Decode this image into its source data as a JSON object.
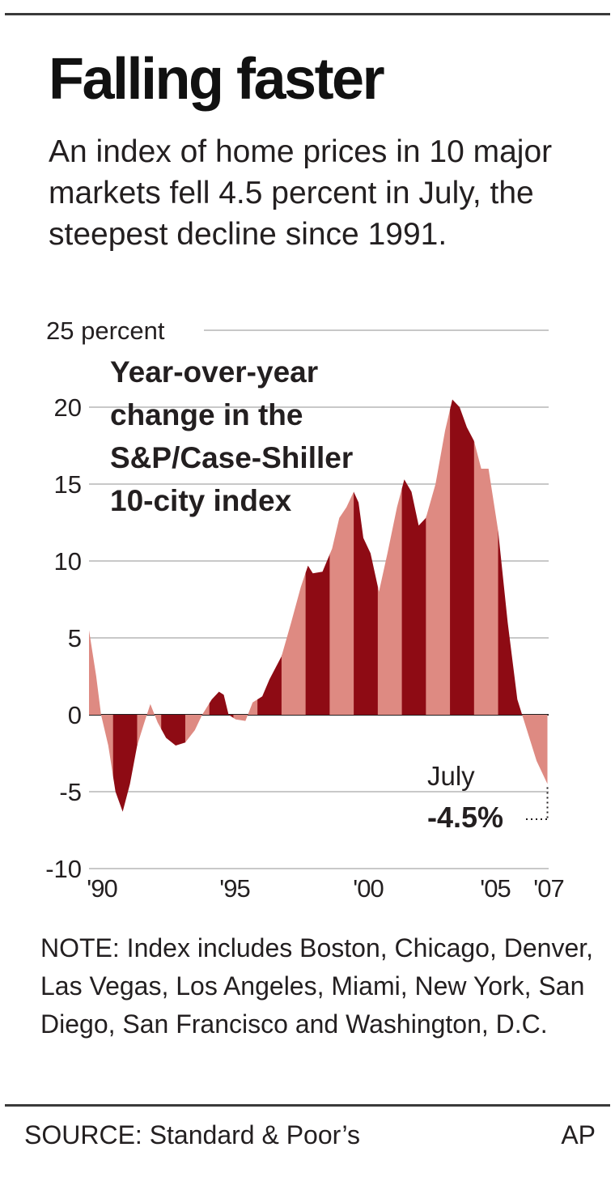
{
  "header": {
    "title": "Falling faster",
    "subtitle": "An index of home prices in 10 major markets fell 4.5 percent in July, the steepest decline since 1991."
  },
  "chart_data": {
    "type": "area",
    "title": "Year-over-year change in the S&P/Case-Shiller 10-city index",
    "title_lines": [
      "Year-over-year",
      "change in the",
      "S&P/Case-Shiller",
      "10-city index"
    ],
    "ylabel": "",
    "xlabel": "",
    "ylim": [
      -10,
      25
    ],
    "yticks": [
      25,
      20,
      15,
      10,
      5,
      0,
      -5,
      -10
    ],
    "ytick_labels": [
      "25 percent",
      "20",
      "15",
      "10",
      "5",
      "0",
      "-5",
      "-10"
    ],
    "xlim": [
      1988.5,
      2007.6
    ],
    "xticks": [
      1988.5,
      1993.5,
      1998.5,
      2003.5,
      2007.6
    ],
    "xtick_labels": [
      "'90",
      "'95",
      "'00",
      "'05",
      "'07"
    ],
    "grid": true,
    "colors": {
      "dark": "#8e0b14",
      "light": "#de8a82",
      "grid": "#c8c8c8",
      "axis": "#231f20"
    },
    "bands": [
      {
        "start": 1988.5,
        "end": 1989.5,
        "shade": "light"
      },
      {
        "start": 1989.5,
        "end": 1990.5,
        "shade": "dark"
      },
      {
        "start": 1990.5,
        "end": 1991.5,
        "shade": "light"
      },
      {
        "start": 1991.5,
        "end": 1992.5,
        "shade": "dark"
      },
      {
        "start": 1992.5,
        "end": 1993.5,
        "shade": "light"
      },
      {
        "start": 1993.5,
        "end": 1994.5,
        "shade": "dark"
      },
      {
        "start": 1994.5,
        "end": 1995.5,
        "shade": "light"
      },
      {
        "start": 1995.5,
        "end": 1996.5,
        "shade": "dark"
      },
      {
        "start": 1996.5,
        "end": 1997.5,
        "shade": "light"
      },
      {
        "start": 1997.5,
        "end": 1998.5,
        "shade": "dark"
      },
      {
        "start": 1998.5,
        "end": 1999.5,
        "shade": "light"
      },
      {
        "start": 1999.5,
        "end": 2000.5,
        "shade": "dark"
      },
      {
        "start": 2000.5,
        "end": 2001.5,
        "shade": "light"
      },
      {
        "start": 2001.5,
        "end": 2002.5,
        "shade": "dark"
      },
      {
        "start": 2002.5,
        "end": 2003.5,
        "shade": "light"
      },
      {
        "start": 2003.5,
        "end": 2004.5,
        "shade": "dark"
      },
      {
        "start": 2004.5,
        "end": 2005.5,
        "shade": "light"
      },
      {
        "start": 2005.5,
        "end": 2006.5,
        "shade": "dark"
      },
      {
        "start": 2006.5,
        "end": 2007.6,
        "shade": "light"
      }
    ],
    "series": [
      {
        "values": [
          {
            "x": 1988.5,
            "y": 5.5
          },
          {
            "x": 1988.8,
            "y": 2.5
          },
          {
            "x": 1989.0,
            "y": 0.0
          },
          {
            "x": 1989.3,
            "y": -2.0
          },
          {
            "x": 1989.6,
            "y": -5.0
          },
          {
            "x": 1989.9,
            "y": -6.3
          },
          {
            "x": 1990.2,
            "y": -4.5
          },
          {
            "x": 1990.5,
            "y": -2.0
          },
          {
            "x": 1990.8,
            "y": -0.5
          },
          {
            "x": 1991.05,
            "y": 0.7
          },
          {
            "x": 1991.35,
            "y": -0.5
          },
          {
            "x": 1991.7,
            "y": -1.5
          },
          {
            "x": 1992.1,
            "y": -2.0
          },
          {
            "x": 1992.5,
            "y": -1.8
          },
          {
            "x": 1992.9,
            "y": -1.0
          },
          {
            "x": 1993.2,
            "y": 0.0
          },
          {
            "x": 1993.6,
            "y": 1.0
          },
          {
            "x": 1993.9,
            "y": 1.5
          },
          {
            "x": 1994.1,
            "y": 1.3
          },
          {
            "x": 1994.3,
            "y": 0.0
          },
          {
            "x": 1994.6,
            "y": -0.3
          },
          {
            "x": 1995.0,
            "y": -0.4
          },
          {
            "x": 1995.3,
            "y": 0.8
          },
          {
            "x": 1995.7,
            "y": 1.2
          },
          {
            "x": 1996.0,
            "y": 2.3
          },
          {
            "x": 1996.5,
            "y": 3.8
          },
          {
            "x": 1996.9,
            "y": 6.0
          },
          {
            "x": 1997.3,
            "y": 8.3
          },
          {
            "x": 1997.6,
            "y": 9.7
          },
          {
            "x": 1997.8,
            "y": 9.2
          },
          {
            "x": 1998.2,
            "y": 9.3
          },
          {
            "x": 1998.6,
            "y": 10.8
          },
          {
            "x": 1998.9,
            "y": 12.8
          },
          {
            "x": 1999.2,
            "y": 13.5
          },
          {
            "x": 1999.5,
            "y": 14.5
          },
          {
            "x": 1999.7,
            "y": 13.8
          },
          {
            "x": 1999.9,
            "y": 11.5
          },
          {
            "x": 2000.2,
            "y": 10.5
          },
          {
            "x": 2000.55,
            "y": 8.0
          },
          {
            "x": 2000.9,
            "y": 10.5
          },
          {
            "x": 2001.3,
            "y": 13.5
          },
          {
            "x": 2001.6,
            "y": 15.3
          },
          {
            "x": 2001.9,
            "y": 14.5
          },
          {
            "x": 2002.2,
            "y": 12.3
          },
          {
            "x": 2002.5,
            "y": 12.8
          },
          {
            "x": 2002.9,
            "y": 15.0
          },
          {
            "x": 2003.3,
            "y": 18.5
          },
          {
            "x": 2003.6,
            "y": 20.5
          },
          {
            "x": 2003.9,
            "y": 20.0
          },
          {
            "x": 2004.2,
            "y": 18.7
          },
          {
            "x": 2004.5,
            "y": 17.8
          },
          {
            "x": 2004.8,
            "y": 16.0
          },
          {
            "x": 2005.1,
            "y": 16.0
          },
          {
            "x": 2005.5,
            "y": 12.0
          },
          {
            "x": 2005.9,
            "y": 6.0
          },
          {
            "x": 2006.3,
            "y": 1.0
          },
          {
            "x": 2006.7,
            "y": -1.0
          },
          {
            "x": 2007.1,
            "y": -3.0
          },
          {
            "x": 2007.55,
            "y": -4.5
          }
        ]
      }
    ],
    "annotation": {
      "label": "July",
      "value": "-4.5%",
      "x": 2007.55,
      "y": -4.5
    }
  },
  "note": "NOTE: Index includes Boston, Chicago, Denver, Las Vegas, Los Angeles, Miami, New York, San Diego, San Francisco and Washington, D.C.",
  "footer": {
    "source": "SOURCE: Standard & Poor’s",
    "credit": "AP"
  }
}
